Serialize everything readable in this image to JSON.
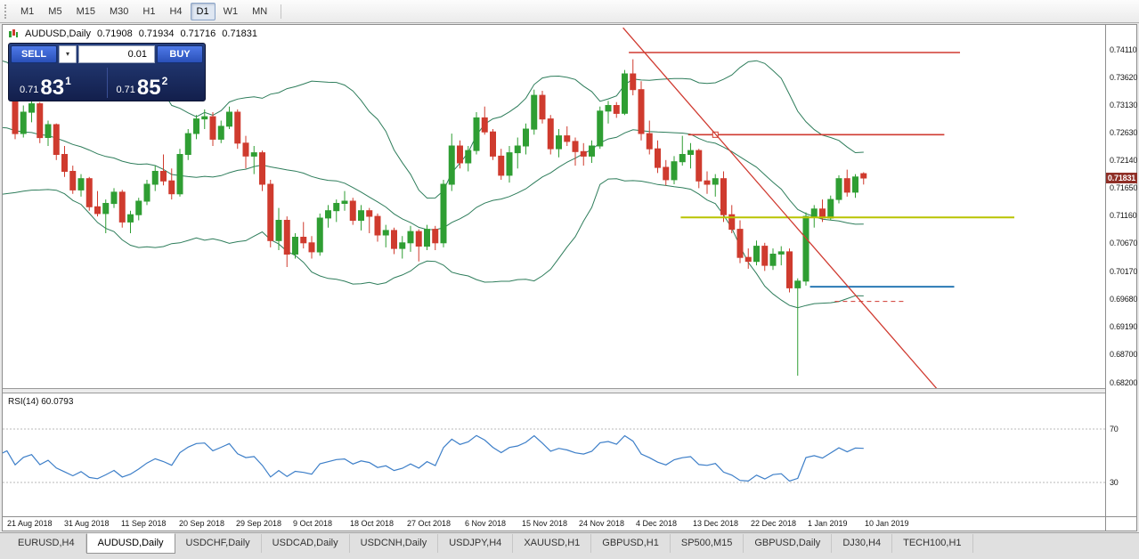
{
  "toolbar": {
    "timeframes": [
      "M1",
      "M5",
      "M15",
      "M30",
      "H1",
      "H4",
      "D1",
      "W1",
      "MN"
    ],
    "selected": "D1"
  },
  "chart_header": {
    "symbol_label": "AUDUSD,Daily",
    "open": "0.71908",
    "high": "0.71934",
    "low": "0.71716",
    "close": "0.71831"
  },
  "trade_panel": {
    "sell_label": "SELL",
    "buy_label": "BUY",
    "volume": "0.01",
    "sell_price": {
      "prefix": "0.71",
      "big": "83",
      "sup": "1"
    },
    "buy_price": {
      "prefix": "0.71",
      "big": "85",
      "sup": "2"
    }
  },
  "icons": {
    "volume_dropdown": "▾"
  },
  "axes": {
    "price_labels": [
      "0.74110",
      "0.73620",
      "0.73130",
      "0.72630",
      "0.72140",
      "0.71650",
      "0.71160",
      "0.70670",
      "0.70170",
      "0.69680",
      "0.69190",
      "0.68700",
      "0.68200"
    ],
    "time_labels": [
      "21 Aug 2018",
      "31 Aug 2018",
      "11 Sep 2018",
      "20 Sep 2018",
      "29 Sep 2018",
      "9 Oct 2018",
      "18 Oct 2018",
      "27 Oct 2018",
      "6 Nov 2018",
      "15 Nov 2018",
      "24 Nov 2018",
      "4 Dec 2018",
      "13 Dec 2018",
      "22 Dec 2018",
      "1 Jan 2019",
      "10 Jan 2019"
    ],
    "rsi_level_labels": [
      "70",
      "30"
    ],
    "current_price": "0.71831"
  },
  "indicator": {
    "label": "RSI(14) 60.0793"
  },
  "tabs": {
    "items": [
      "EURUSD,H4",
      "AUDUSD,Daily",
      "USDCHF,Daily",
      "USDCAD,Daily",
      "USDCNH,Daily",
      "USDJPY,H4",
      "XAUUSD,H1",
      "GBPUSD,H1",
      "SP500,M15",
      "GBPUSD,Daily",
      "DJ30,H4",
      "TECH100,H1"
    ],
    "selected_index": 1
  },
  "colors": {
    "up": "#2f9e33",
    "down": "#cf3b2e",
    "bands": "#2e7d5b",
    "rsi": "#3c7ec8",
    "rsi_level": "#b8b8b8",
    "badge_bg": "#8f2f27",
    "olive_line": "#b9c400",
    "blue_line": "#2a7ab5",
    "red_line": "#d03a30"
  },
  "chart_data": {
    "type": "candlestick",
    "symbol": "AUDUSD",
    "timeframe": "Daily",
    "title": "AUDUSD,Daily",
    "ohlc": {
      "open": 0.71908,
      "high": 0.71934,
      "low": 0.71716,
      "close": 0.71831
    },
    "bid": 0.71831,
    "ask": 0.71852,
    "price_range": {
      "top": 0.7455,
      "bottom": 0.681
    },
    "bar_origin": 14,
    "bar_step": 9.25,
    "history_bars": 21,
    "bollinger": {
      "period": 20,
      "deviation": 2
    },
    "rsi": {
      "period": 14,
      "value": 60.0793,
      "levels": [
        70,
        30
      ],
      "range_top": 100,
      "range_bottom": 0
    },
    "candles": [
      [
        0.7368,
        0.738,
        0.7352,
        0.736
      ],
      [
        0.736,
        0.7372,
        0.7345,
        0.7355
      ],
      [
        0.7355,
        0.7368,
        0.734,
        0.7348
      ],
      [
        0.7348,
        0.736,
        0.733,
        0.7338
      ],
      [
        0.7338,
        0.7352,
        0.7318,
        0.7325
      ],
      [
        0.7325,
        0.734,
        0.7305,
        0.7312
      ],
      [
        0.7312,
        0.733,
        0.73,
        0.7322
      ],
      [
        0.7322,
        0.7328,
        0.7288,
        0.7295
      ],
      [
        0.7295,
        0.731,
        0.7275,
        0.7282
      ],
      [
        0.7282,
        0.7295,
        0.7258,
        0.7265
      ],
      [
        0.7265,
        0.7278,
        0.724,
        0.7248
      ],
      [
        0.7248,
        0.7262,
        0.723,
        0.7255
      ],
      [
        0.7255,
        0.7268,
        0.7225,
        0.7232
      ],
      [
        0.7232,
        0.7245,
        0.7205,
        0.7212
      ],
      [
        0.7212,
        0.7225,
        0.7195,
        0.7218
      ],
      [
        0.7218,
        0.7222,
        0.7185,
        0.7192
      ],
      [
        0.7192,
        0.7205,
        0.717,
        0.7178
      ],
      [
        0.7178,
        0.7185,
        0.7148,
        0.7158
      ],
      [
        0.7158,
        0.726,
        0.715,
        0.7255
      ],
      [
        0.7255,
        0.7322,
        0.7248,
        0.7315
      ],
      [
        0.7315,
        0.7342,
        0.73,
        0.7335
      ],
      [
        0.7335,
        0.7342,
        0.7252,
        0.7262
      ],
      [
        0.7262,
        0.7312,
        0.7255,
        0.73
      ],
      [
        0.73,
        0.7322,
        0.7282,
        0.7315
      ],
      [
        0.7315,
        0.7318,
        0.7245,
        0.7255
      ],
      [
        0.7255,
        0.7285,
        0.724,
        0.7278
      ],
      [
        0.7278,
        0.728,
        0.7215,
        0.7225
      ],
      [
        0.7225,
        0.724,
        0.7185,
        0.7195
      ],
      [
        0.7195,
        0.7205,
        0.7155,
        0.7162
      ],
      [
        0.7162,
        0.719,
        0.715,
        0.7182
      ],
      [
        0.7182,
        0.7185,
        0.7125,
        0.7132
      ],
      [
        0.7132,
        0.716,
        0.7115,
        0.712
      ],
      [
        0.712,
        0.7145,
        0.7085,
        0.7138
      ],
      [
        0.7138,
        0.7165,
        0.713,
        0.7158
      ],
      [
        0.7158,
        0.7162,
        0.7095,
        0.7105
      ],
      [
        0.7105,
        0.7125,
        0.7085,
        0.7118
      ],
      [
        0.7118,
        0.7148,
        0.7108,
        0.7142
      ],
      [
        0.7142,
        0.718,
        0.7135,
        0.7172
      ],
      [
        0.7172,
        0.7205,
        0.716,
        0.7195
      ],
      [
        0.7195,
        0.7225,
        0.717,
        0.7178
      ],
      [
        0.7178,
        0.72,
        0.7145,
        0.7155
      ],
      [
        0.7155,
        0.7235,
        0.715,
        0.7225
      ],
      [
        0.7225,
        0.727,
        0.7215,
        0.7262
      ],
      [
        0.7262,
        0.7295,
        0.7252,
        0.7288
      ],
      [
        0.7288,
        0.7305,
        0.727,
        0.7292
      ],
      [
        0.7292,
        0.73,
        0.724,
        0.7252
      ],
      [
        0.7252,
        0.7285,
        0.7245,
        0.7275
      ],
      [
        0.7275,
        0.731,
        0.727,
        0.73
      ],
      [
        0.73,
        0.7305,
        0.7235,
        0.7245
      ],
      [
        0.7245,
        0.7258,
        0.72,
        0.7222
      ],
      [
        0.7222,
        0.724,
        0.719,
        0.7228
      ],
      [
        0.7228,
        0.7232,
        0.716,
        0.7172
      ],
      [
        0.7172,
        0.718,
        0.706,
        0.7072
      ],
      [
        0.7072,
        0.713,
        0.7055,
        0.7108
      ],
      [
        0.7108,
        0.7115,
        0.7025,
        0.7048
      ],
      [
        0.7048,
        0.7085,
        0.704,
        0.7078
      ],
      [
        0.7078,
        0.7105,
        0.7058,
        0.7068
      ],
      [
        0.7068,
        0.708,
        0.704,
        0.7052
      ],
      [
        0.7052,
        0.712,
        0.7045,
        0.7112
      ],
      [
        0.7112,
        0.7135,
        0.7095,
        0.7125
      ],
      [
        0.7125,
        0.7145,
        0.7105,
        0.7138
      ],
      [
        0.7138,
        0.716,
        0.7125,
        0.7142
      ],
      [
        0.7142,
        0.7148,
        0.71,
        0.7108
      ],
      [
        0.7108,
        0.7135,
        0.709,
        0.7125
      ],
      [
        0.7125,
        0.713,
        0.7085,
        0.7115
      ],
      [
        0.7115,
        0.712,
        0.707,
        0.7082
      ],
      [
        0.7082,
        0.71,
        0.706,
        0.709
      ],
      [
        0.709,
        0.7095,
        0.7048,
        0.7058
      ],
      [
        0.7058,
        0.708,
        0.704,
        0.7068
      ],
      [
        0.7068,
        0.7098,
        0.7052,
        0.7088
      ],
      [
        0.7088,
        0.7092,
        0.7035,
        0.7062
      ],
      [
        0.7062,
        0.71,
        0.7055,
        0.7092
      ],
      [
        0.7092,
        0.7098,
        0.7055,
        0.7068
      ],
      [
        0.7068,
        0.718,
        0.706,
        0.7172
      ],
      [
        0.7172,
        0.7262,
        0.716,
        0.724
      ],
      [
        0.724,
        0.725,
        0.72,
        0.721
      ],
      [
        0.721,
        0.724,
        0.7195,
        0.7232
      ],
      [
        0.7232,
        0.73,
        0.7225,
        0.729
      ],
      [
        0.729,
        0.731,
        0.726,
        0.7265
      ],
      [
        0.7265,
        0.727,
        0.7215,
        0.7222
      ],
      [
        0.7222,
        0.7235,
        0.718,
        0.7188
      ],
      [
        0.7188,
        0.724,
        0.7175,
        0.7228
      ],
      [
        0.7228,
        0.7255,
        0.72,
        0.724
      ],
      [
        0.724,
        0.728,
        0.7225,
        0.727
      ],
      [
        0.727,
        0.734,
        0.726,
        0.733
      ],
      [
        0.733,
        0.7338,
        0.728,
        0.7288
      ],
      [
        0.7288,
        0.7295,
        0.7225,
        0.7235
      ],
      [
        0.7235,
        0.727,
        0.722,
        0.7258
      ],
      [
        0.7258,
        0.7275,
        0.724,
        0.7248
      ],
      [
        0.7248,
        0.7255,
        0.7205,
        0.723
      ],
      [
        0.723,
        0.7245,
        0.7205,
        0.7222
      ],
      [
        0.7222,
        0.725,
        0.721,
        0.724
      ],
      [
        0.724,
        0.731,
        0.7235,
        0.7302
      ],
      [
        0.7302,
        0.732,
        0.728,
        0.7312
      ],
      [
        0.7312,
        0.7318,
        0.729,
        0.7298
      ],
      [
        0.7298,
        0.7375,
        0.7295,
        0.7368
      ],
      [
        0.7368,
        0.7394,
        0.733,
        0.734
      ],
      [
        0.734,
        0.7355,
        0.725,
        0.7262
      ],
      [
        0.7262,
        0.7285,
        0.7225,
        0.7235
      ],
      [
        0.7235,
        0.725,
        0.7192,
        0.7202
      ],
      [
        0.7202,
        0.7215,
        0.717,
        0.718
      ],
      [
        0.718,
        0.7222,
        0.7172,
        0.7212
      ],
      [
        0.7212,
        0.7258,
        0.7205,
        0.7225
      ],
      [
        0.7225,
        0.7245,
        0.72,
        0.7232
      ],
      [
        0.7232,
        0.7235,
        0.7165,
        0.7178
      ],
      [
        0.7178,
        0.7195,
        0.7155,
        0.7172
      ],
      [
        0.7172,
        0.719,
        0.715,
        0.7182
      ],
      [
        0.7182,
        0.7195,
        0.7105,
        0.7118
      ],
      [
        0.7118,
        0.7135,
        0.7085,
        0.7092
      ],
      [
        0.7092,
        0.7108,
        0.7032,
        0.7042
      ],
      [
        0.7042,
        0.7058,
        0.7022,
        0.7035
      ],
      [
        0.7035,
        0.7072,
        0.7028,
        0.7062
      ],
      [
        0.7062,
        0.7068,
        0.7018,
        0.7028
      ],
      [
        0.7028,
        0.7058,
        0.702,
        0.7048
      ],
      [
        0.7048,
        0.7062,
        0.7028,
        0.7052
      ],
      [
        0.7052,
        0.7058,
        0.698,
        0.6988
      ],
      [
        0.6988,
        0.7005,
        0.6832,
        0.7
      ],
      [
        0.7,
        0.7122,
        0.6992,
        0.7115
      ],
      [
        0.7115,
        0.7135,
        0.7095,
        0.7128
      ],
      [
        0.7128,
        0.7145,
        0.7105,
        0.7112
      ],
      [
        0.7112,
        0.7152,
        0.7108,
        0.7145
      ],
      [
        0.7145,
        0.7188,
        0.7138,
        0.7182
      ],
      [
        0.7182,
        0.7198,
        0.715,
        0.7158
      ],
      [
        0.7158,
        0.719,
        0.7148,
        0.7185
      ],
      [
        0.71908,
        0.71934,
        0.71716,
        0.71831
      ]
    ],
    "overlays": [
      {
        "type": "hline",
        "name": "resistance-line-top",
        "price": 0.7406,
        "v1": 74.5,
        "v2": 114.7,
        "color": "#d03a30",
        "width": 1.6
      },
      {
        "type": "hline",
        "name": "resistance-line-mid",
        "price": 0.726,
        "v1": 81.7,
        "v2": 112.8,
        "color": "#d03a30",
        "width": 1.6,
        "handle_v": 85
      },
      {
        "type": "hline",
        "name": "support-line-olive",
        "price": 0.7113,
        "v1": 80.8,
        "v2": 121.3,
        "color": "#b9c400",
        "width": 2
      },
      {
        "type": "hline",
        "name": "support-line-blue",
        "price": 0.699,
        "v1": 96.5,
        "v2": 114,
        "color": "#2a7ab5",
        "width": 2
      },
      {
        "type": "hline",
        "name": "dashed-level",
        "price": 0.6964,
        "v1": 99.5,
        "v2": 108,
        "color": "#d03a30",
        "width": 1,
        "dash": "5,4"
      },
      {
        "type": "trend",
        "name": "descending-trendline",
        "p1": 0.745,
        "v1": 73.8,
        "p2": 0.6807,
        "v2": 112,
        "color": "#d03a30",
        "width": 1.3
      }
    ]
  }
}
